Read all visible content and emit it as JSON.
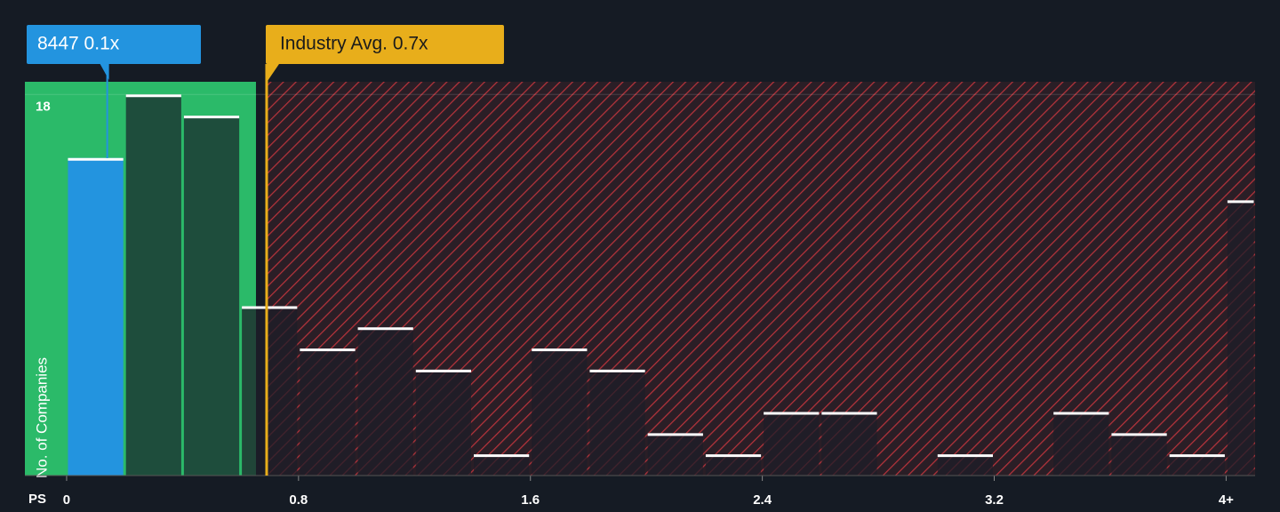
{
  "chart_data": {
    "type": "histogram",
    "xlabel": "PS",
    "ylabel": "No. of Companies",
    "bins": [
      0,
      0.2,
      0.4,
      0.6,
      0.8,
      1.0,
      1.2,
      1.4,
      1.6,
      1.8,
      2.0,
      2.2,
      2.4,
      2.6,
      2.8,
      3.0,
      3.2,
      3.4,
      3.6,
      3.8,
      4.0,
      4.1
    ],
    "counts": [
      15,
      18,
      17,
      8,
      6,
      7,
      5,
      1,
      6,
      5,
      2,
      1,
      3,
      3,
      0,
      1,
      0,
      3,
      2,
      1,
      13
    ],
    "xlim": [
      -0.144,
      4.1
    ],
    "ylim": [
      0,
      18.6
    ],
    "xticks": [
      0,
      0.8,
      1.6,
      2.4,
      3.2,
      {
        "value": 4,
        "label": "4+"
      }
    ],
    "yticks": [
      18
    ],
    "company": {
      "label": "8447 0.1x",
      "value": 0.14,
      "color": "#2394df"
    },
    "industry": {
      "label": "Industry Avg. 0.7x",
      "value": 0.69,
      "color": "#e8ae1b"
    }
  }
}
